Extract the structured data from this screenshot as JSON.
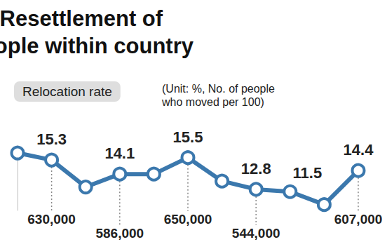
{
  "chart_data": {
    "type": "line",
    "title": "Resettlement of\npeople within country",
    "subtitle": "(Unit: %, No. of people\nwho moved per 100)",
    "categories": [
      null,
      null,
      null,
      null,
      null,
      null,
      null,
      null,
      null,
      null,
      null
    ],
    "series": [
      {
        "name": "Relocation rate",
        "color": "#3b78ad",
        "marker": "circle",
        "line_style": "solid",
        "values": [
          15.9,
          15.3,
          13.0,
          14.1,
          14.1,
          15.5,
          13.5,
          12.8,
          12.6,
          11.5,
          14.4
        ],
        "value_labels": [
          null,
          "15.3",
          null,
          "14.1",
          null,
          "15.5",
          null,
          "12.8",
          null,
          "11.5",
          "14.4"
        ],
        "people": [
          null,
          {
            "value": 630000,
            "label": "630,000"
          },
          null,
          {
            "value": 586000,
            "label": "586,000"
          },
          null,
          {
            "value": 650000,
            "label": "650,000"
          },
          null,
          {
            "value": 544000,
            "label": "544,000"
          },
          null,
          null,
          {
            "value": 607000,
            "label": "607,000"
          }
        ]
      }
    ],
    "ylim": [
      11,
      16.5
    ],
    "yticks": [],
    "grid": false,
    "legend": "top-left",
    "data_labels": true,
    "tick_labels": false
  }
}
